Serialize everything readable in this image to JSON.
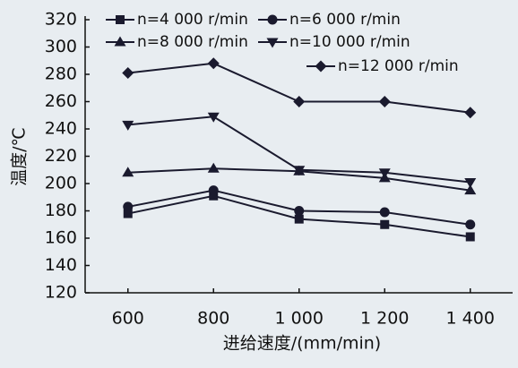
{
  "chart_data": {
    "type": "line",
    "xlabel": "进给速度/(mm/min)",
    "ylabel": "温度/℃",
    "categories": [
      "600",
      "800",
      "1 000",
      "1 200",
      "1 400"
    ],
    "ylim": [
      120,
      320
    ],
    "yticks": [
      120,
      140,
      160,
      180,
      200,
      220,
      240,
      260,
      280,
      300,
      320
    ],
    "series": [
      {
        "name": "n=4 000 r/min",
        "marker": "square",
        "color": "#1a1a2e",
        "values": [
          178,
          191,
          174,
          170,
          161
        ]
      },
      {
        "name": "n=6 000 r/min",
        "marker": "circle",
        "color": "#1a1a2e",
        "values": [
          183,
          195,
          180,
          179,
          170
        ]
      },
      {
        "name": "n=8 000 r/min",
        "marker": "triangle-up",
        "color": "#1a1a2e",
        "values": [
          208,
          211,
          209,
          204,
          195
        ]
      },
      {
        "name": "n=10 000 r/min",
        "marker": "triangle-down",
        "color": "#1a1a2e",
        "values": [
          243,
          249,
          210,
          208,
          201
        ]
      },
      {
        "name": "n=12 000 r/min",
        "marker": "diamond",
        "color": "#1a1a2e",
        "values": [
          281,
          288,
          260,
          260,
          252
        ]
      }
    ]
  }
}
